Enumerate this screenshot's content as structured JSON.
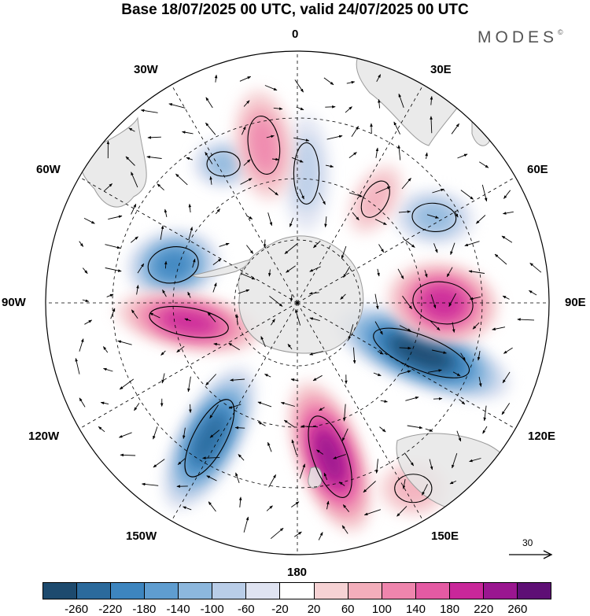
{
  "title": "Base 18/07/2025 00 UTC, valid 24/07/2025 00 UTC",
  "brand": {
    "name": "MODES",
    "mark": "©"
  },
  "longitude_labels": [
    "0",
    "30E",
    "60E",
    "90E",
    "120E",
    "150E",
    "180",
    "150W",
    "120W",
    "90W",
    "60W",
    "30W"
  ],
  "vector_reference": {
    "value": "30"
  },
  "colors": {
    "land": "#e6e6e6",
    "coast": "#9a9a9a",
    "negative_scale": [
      "#1d4a6e",
      "#2b6a9c",
      "#3d85bf",
      "#5f9dd0",
      "#8cb7dd",
      "#b9cde8",
      "#dfe3f1"
    ],
    "positive_scale": [
      "#f6d2d4",
      "#f3aebb",
      "#ef85ad",
      "#e45aa3",
      "#c9279a",
      "#9a1690",
      "#5e0f75"
    ]
  },
  "colorbar": {
    "colors": [
      "#1d4a6e",
      "#2b6a9c",
      "#3d85bf",
      "#5f9dd0",
      "#8cb7dd",
      "#b9cde8",
      "#dfe3f1",
      "#ffffff",
      "#f6d2d4",
      "#f3aebb",
      "#ef85ad",
      "#e45aa3",
      "#c9279a",
      "#9a1690",
      "#5e0f75"
    ],
    "tick_labels": [
      "-260",
      "-220",
      "-180",
      "-140",
      "-100",
      "-60",
      "-20",
      "20",
      "60",
      "100",
      "140",
      "180",
      "220",
      "260"
    ]
  },
  "anomalies": [
    {
      "sign": "negative",
      "magnitude": 260,
      "place": "south of Australia, 110E"
    },
    {
      "sign": "negative",
      "magnitude": 220,
      "place": "south Pacific, 145W"
    },
    {
      "sign": "negative",
      "magnitude": 180,
      "place": "Antarctic Peninsula, 70W"
    },
    {
      "sign": "negative",
      "magnitude": 100,
      "place": "southern Indian Ocean, 60E"
    },
    {
      "sign": "negative",
      "magnitude": 100,
      "place": "South Atlantic, 25W"
    },
    {
      "sign": "negative",
      "magnitude": 60,
      "place": "Weddell Sea, 5E"
    },
    {
      "sign": "positive",
      "magnitude": 220,
      "place": "Ross Sea, 170E"
    },
    {
      "sign": "positive",
      "magnitude": 180,
      "place": "southern Indian Ocean, 90E"
    },
    {
      "sign": "positive",
      "magnitude": 180,
      "place": "south Pacific, 100W"
    },
    {
      "sign": "positive",
      "magnitude": 100,
      "place": "South Atlantic, 10W"
    },
    {
      "sign": "positive",
      "magnitude": 60,
      "place": "Tasman Sea, 150E"
    },
    {
      "sign": "positive",
      "magnitude": 60,
      "place": "southern Indian Ocean, 40E"
    }
  ]
}
